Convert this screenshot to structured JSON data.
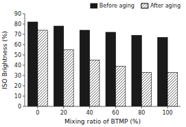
{
  "chart_data": {
    "type": "bar",
    "xlabel": "Mixing ratio of BTMP (%)",
    "ylabel": "ISO Brightness (%)",
    "categories": [
      0,
      20,
      40,
      60,
      80,
      100
    ],
    "series": [
      {
        "name": "Before aging",
        "color": "#1a1a1a",
        "values": [
          82,
          78,
          74,
          72,
          69,
          67
        ]
      },
      {
        "name": "After aging",
        "color": "#ffffff",
        "values": [
          74,
          55,
          45,
          39,
          33,
          33
        ]
      }
    ],
    "ylim": [
      0,
      90
    ],
    "yticks": [
      0,
      10,
      20,
      30,
      40,
      50,
      60,
      70,
      80,
      90
    ],
    "grid": false,
    "legend": "upper right"
  }
}
